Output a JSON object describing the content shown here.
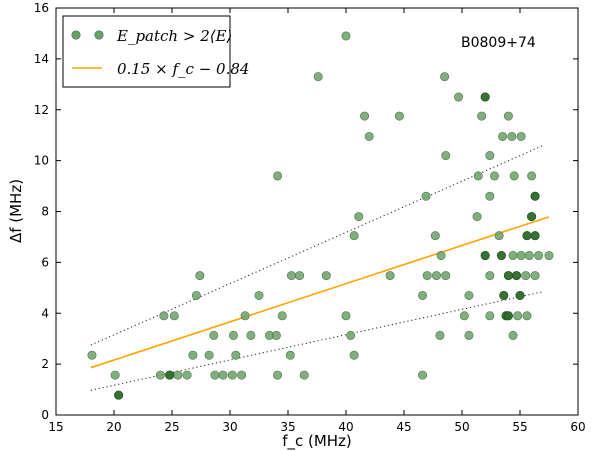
{
  "chart_data": {
    "type": "scatter",
    "title": "",
    "annotation": "B0809+74",
    "xlabel": "f_c (MHz)",
    "ylabel": "Δf (MHz)",
    "xlim": [
      15,
      60
    ],
    "ylim": [
      0,
      16
    ],
    "xticks": [
      15,
      20,
      25,
      30,
      35,
      40,
      45,
      50,
      55,
      60
    ],
    "yticks": [
      0,
      2,
      4,
      6,
      8,
      10,
      12,
      14,
      16
    ],
    "grid": false,
    "legend_position": "top-left",
    "legend": {
      "points": "E_patch > 2⟨E⟩",
      "fit": "0.15 × f_c − 0.84"
    },
    "colors": {
      "points": "#6b9f68",
      "points_edge": "#4a7a48",
      "fit": "#ffa500",
      "bounds": "#333333"
    },
    "fit_line": {
      "x": [
        18,
        57.5
      ],
      "y": [
        1.86,
        7.79
      ]
    },
    "upper_bound": {
      "x": [
        18,
        57
      ],
      "y": [
        2.75,
        10.6
      ]
    },
    "lower_bound": {
      "x": [
        18,
        57
      ],
      "y": [
        0.97,
        4.85
      ]
    },
    "points": [
      [
        18.1,
        2.35
      ],
      [
        20.1,
        1.57
      ],
      [
        20.4,
        0.78
      ],
      [
        24.0,
        1.57
      ],
      [
        24.3,
        3.9
      ],
      [
        24.8,
        1.57
      ],
      [
        25.2,
        3.9
      ],
      [
        25.5,
        1.57
      ],
      [
        26.3,
        1.57
      ],
      [
        26.8,
        2.35
      ],
      [
        27.1,
        4.7
      ],
      [
        27.4,
        5.48
      ],
      [
        28.2,
        2.35
      ],
      [
        28.6,
        3.13
      ],
      [
        28.7,
        1.57
      ],
      [
        29.4,
        1.57
      ],
      [
        30.2,
        1.57
      ],
      [
        30.3,
        3.13
      ],
      [
        30.5,
        2.35
      ],
      [
        31.0,
        1.57
      ],
      [
        31.3,
        3.9
      ],
      [
        31.8,
        3.13
      ],
      [
        32.5,
        4.7
      ],
      [
        33.4,
        3.13
      ],
      [
        34.0,
        3.13
      ],
      [
        34.1,
        9.4
      ],
      [
        34.1,
        1.57
      ],
      [
        34.5,
        3.9
      ],
      [
        35.2,
        2.35
      ],
      [
        35.3,
        5.48
      ],
      [
        36.0,
        5.48
      ],
      [
        36.4,
        1.57
      ],
      [
        37.6,
        13.3
      ],
      [
        38.3,
        5.48
      ],
      [
        40.0,
        14.9
      ],
      [
        40.0,
        3.9
      ],
      [
        40.4,
        3.13
      ],
      [
        40.7,
        7.05
      ],
      [
        40.7,
        2.35
      ],
      [
        41.1,
        7.8
      ],
      [
        41.6,
        11.75
      ],
      [
        42.0,
        10.95
      ],
      [
        43.8,
        5.48
      ],
      [
        44.6,
        11.75
      ],
      [
        46.6,
        4.7
      ],
      [
        46.6,
        1.57
      ],
      [
        46.9,
        8.6
      ],
      [
        47.0,
        5.48
      ],
      [
        47.7,
        7.05
      ],
      [
        47.8,
        5.48
      ],
      [
        48.1,
        3.13
      ],
      [
        48.2,
        6.27
      ],
      [
        48.5,
        13.3
      ],
      [
        48.6,
        10.2
      ],
      [
        48.6,
        5.48
      ],
      [
        49.7,
        12.5
      ],
      [
        50.2,
        3.9
      ],
      [
        50.6,
        4.7
      ],
      [
        50.6,
        3.13
      ],
      [
        51.3,
        7.8
      ],
      [
        51.4,
        9.4
      ],
      [
        51.7,
        11.75
      ],
      [
        52.0,
        12.5
      ],
      [
        52.0,
        6.27
      ],
      [
        52.4,
        10.2
      ],
      [
        52.4,
        8.6
      ],
      [
        52.4,
        5.48
      ],
      [
        52.4,
        3.9
      ],
      [
        52.8,
        9.4
      ],
      [
        53.2,
        7.05
      ],
      [
        53.4,
        6.27
      ],
      [
        53.5,
        10.95
      ],
      [
        53.6,
        4.7
      ],
      [
        53.8,
        3.9
      ],
      [
        54.0,
        11.75
      ],
      [
        54.0,
        5.48
      ],
      [
        54.0,
        3.9
      ],
      [
        54.3,
        10.95
      ],
      [
        54.4,
        6.27
      ],
      [
        54.4,
        3.13
      ],
      [
        54.5,
        9.4
      ],
      [
        54.7,
        5.48
      ],
      [
        54.8,
        3.9
      ],
      [
        55.0,
        4.7
      ],
      [
        55.1,
        10.95
      ],
      [
        55.1,
        6.27
      ],
      [
        55.5,
        5.48
      ],
      [
        55.6,
        7.05
      ],
      [
        55.6,
        3.9
      ],
      [
        55.8,
        6.27
      ],
      [
        56.0,
        9.4
      ],
      [
        56.0,
        7.8
      ],
      [
        56.3,
        8.6
      ],
      [
        56.3,
        7.05
      ],
      [
        56.3,
        5.48
      ],
      [
        56.6,
        6.27
      ],
      [
        57.5,
        6.27
      ]
    ],
    "dark_points": [
      [
        20.4,
        0.78
      ],
      [
        24.8,
        1.57
      ],
      [
        52.0,
        12.5
      ],
      [
        52.0,
        6.27
      ],
      [
        53.4,
        6.27
      ],
      [
        53.6,
        4.7
      ],
      [
        53.8,
        3.9
      ],
      [
        54.0,
        5.48
      ],
      [
        54.0,
        3.9
      ],
      [
        54.7,
        5.48
      ],
      [
        55.0,
        4.7
      ],
      [
        55.6,
        7.05
      ],
      [
        56.0,
        7.8
      ],
      [
        56.3,
        8.6
      ],
      [
        56.3,
        7.05
      ]
    ]
  }
}
